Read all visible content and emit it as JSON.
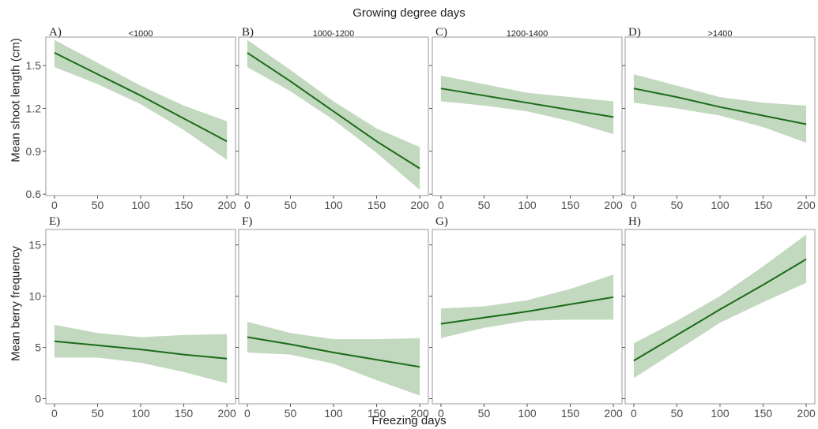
{
  "figure": {
    "top_label": "Growing degree days",
    "x_label": "Freezing days",
    "row_labels": [
      "Mean shoot length (cm)",
      "Mean berry frequency"
    ]
  },
  "colors": {
    "line": "#1a6b1a",
    "band": "#c3d9bf",
    "panel_border": "#9a9a9a",
    "tick_text": "#4d4d4d"
  },
  "chart_data": [
    {
      "type": "line",
      "panel_letter": "A)",
      "title": "<1000",
      "x_ticks": [
        0,
        50,
        100,
        150,
        200
      ],
      "y_ticks": [
        0.6,
        0.9,
        1.2,
        1.5
      ],
      "y_tick_labels": [
        "0.6",
        "0.9",
        "1.2",
        "1.5"
      ],
      "xlim": [
        -10,
        210
      ],
      "ylim": [
        0.59,
        1.7
      ],
      "x": [
        0,
        50,
        100,
        150,
        200
      ],
      "y": [
        1.59,
        1.44,
        1.29,
        1.13,
        0.97
      ],
      "lower": [
        1.49,
        1.37,
        1.23,
        1.05,
        0.84
      ],
      "upper": [
        1.68,
        1.52,
        1.36,
        1.22,
        1.11
      ]
    },
    {
      "type": "line",
      "panel_letter": "B)",
      "title": "1000-1200",
      "x_ticks": [
        0,
        50,
        100,
        150,
        200
      ],
      "y_ticks": [
        0.6,
        0.9,
        1.2,
        1.5
      ],
      "y_tick_labels": [
        "",
        "",
        "",
        ""
      ],
      "xlim": [
        -10,
        210
      ],
      "ylim": [
        0.59,
        1.7
      ],
      "x": [
        0,
        50,
        100,
        150,
        200
      ],
      "y": [
        1.59,
        1.39,
        1.18,
        0.97,
        0.78
      ],
      "lower": [
        1.49,
        1.32,
        1.12,
        0.89,
        0.63
      ],
      "upper": [
        1.68,
        1.47,
        1.25,
        1.06,
        0.93
      ]
    },
    {
      "type": "line",
      "panel_letter": "C)",
      "title": "1200-1400",
      "x_ticks": [
        0,
        50,
        100,
        150,
        200
      ],
      "y_ticks": [
        0.6,
        0.9,
        1.2,
        1.5
      ],
      "y_tick_labels": [
        "",
        "",
        "",
        ""
      ],
      "xlim": [
        -10,
        210
      ],
      "ylim": [
        0.59,
        1.7
      ],
      "x": [
        0,
        50,
        100,
        150,
        200
      ],
      "y": [
        1.34,
        1.29,
        1.24,
        1.19,
        1.14
      ],
      "lower": [
        1.25,
        1.22,
        1.18,
        1.11,
        1.02
      ],
      "upper": [
        1.43,
        1.37,
        1.31,
        1.28,
        1.25
      ]
    },
    {
      "type": "line",
      "panel_letter": "D)",
      "title": ">1400",
      "x_ticks": [
        0,
        50,
        100,
        150,
        200
      ],
      "y_ticks": [
        0.6,
        0.9,
        1.2,
        1.5
      ],
      "y_tick_labels": [
        "",
        "",
        "",
        ""
      ],
      "xlim": [
        -10,
        210
      ],
      "ylim": [
        0.59,
        1.7
      ],
      "x": [
        0,
        50,
        100,
        150,
        200
      ],
      "y": [
        1.34,
        1.28,
        1.21,
        1.15,
        1.09
      ],
      "lower": [
        1.24,
        1.2,
        1.15,
        1.07,
        0.96
      ],
      "upper": [
        1.44,
        1.36,
        1.28,
        1.24,
        1.22
      ]
    },
    {
      "type": "line",
      "panel_letter": "E)",
      "title": "",
      "x_ticks": [
        0,
        50,
        100,
        150,
        200
      ],
      "y_ticks": [
        0,
        5,
        10,
        15
      ],
      "y_tick_labels": [
        "0",
        "5",
        "10",
        "15"
      ],
      "xlim": [
        -10,
        210
      ],
      "ylim": [
        -0.5,
        16.5
      ],
      "x": [
        0,
        50,
        100,
        150,
        200
      ],
      "y": [
        5.6,
        5.2,
        4.8,
        4.3,
        3.9
      ],
      "lower": [
        4.0,
        4.0,
        3.5,
        2.6,
        1.5
      ],
      "upper": [
        7.2,
        6.4,
        6.0,
        6.2,
        6.3
      ]
    },
    {
      "type": "line",
      "panel_letter": "F)",
      "title": "",
      "x_ticks": [
        0,
        50,
        100,
        150,
        200
      ],
      "y_ticks": [
        0,
        5,
        10,
        15
      ],
      "y_tick_labels": [
        "",
        "",
        "",
        ""
      ],
      "xlim": [
        -10,
        210
      ],
      "ylim": [
        -0.5,
        16.5
      ],
      "x": [
        0,
        50,
        100,
        150,
        200
      ],
      "y": [
        6.0,
        5.3,
        4.5,
        3.8,
        3.1
      ],
      "lower": [
        4.5,
        4.3,
        3.4,
        1.8,
        0.3
      ],
      "upper": [
        7.5,
        6.4,
        5.8,
        5.8,
        5.9
      ]
    },
    {
      "type": "line",
      "panel_letter": "G)",
      "title": "",
      "x_ticks": [
        0,
        50,
        100,
        150,
        200
      ],
      "y_ticks": [
        0,
        5,
        10,
        15
      ],
      "y_tick_labels": [
        "",
        "",
        "",
        ""
      ],
      "xlim": [
        -10,
        210
      ],
      "ylim": [
        -0.5,
        16.5
      ],
      "x": [
        0,
        50,
        100,
        150,
        200
      ],
      "y": [
        7.3,
        7.9,
        8.5,
        9.2,
        9.9
      ],
      "lower": [
        5.9,
        6.9,
        7.6,
        7.7,
        7.7
      ],
      "upper": [
        8.8,
        9.0,
        9.6,
        10.7,
        12.1
      ]
    },
    {
      "type": "line",
      "panel_letter": "H)",
      "title": "",
      "x_ticks": [
        0,
        50,
        100,
        150,
        200
      ],
      "y_ticks": [
        0,
        5,
        10,
        15
      ],
      "y_tick_labels": [
        "",
        "",
        "",
        ""
      ],
      "xlim": [
        -10,
        210
      ],
      "ylim": [
        -0.5,
        16.5
      ],
      "x": [
        0,
        50,
        100,
        150,
        200
      ],
      "y": [
        3.7,
        6.2,
        8.7,
        11.1,
        13.6
      ],
      "lower": [
        2.0,
        4.7,
        7.4,
        9.4,
        11.3
      ],
      "upper": [
        5.4,
        7.6,
        10.0,
        12.9,
        16.0
      ]
    }
  ]
}
